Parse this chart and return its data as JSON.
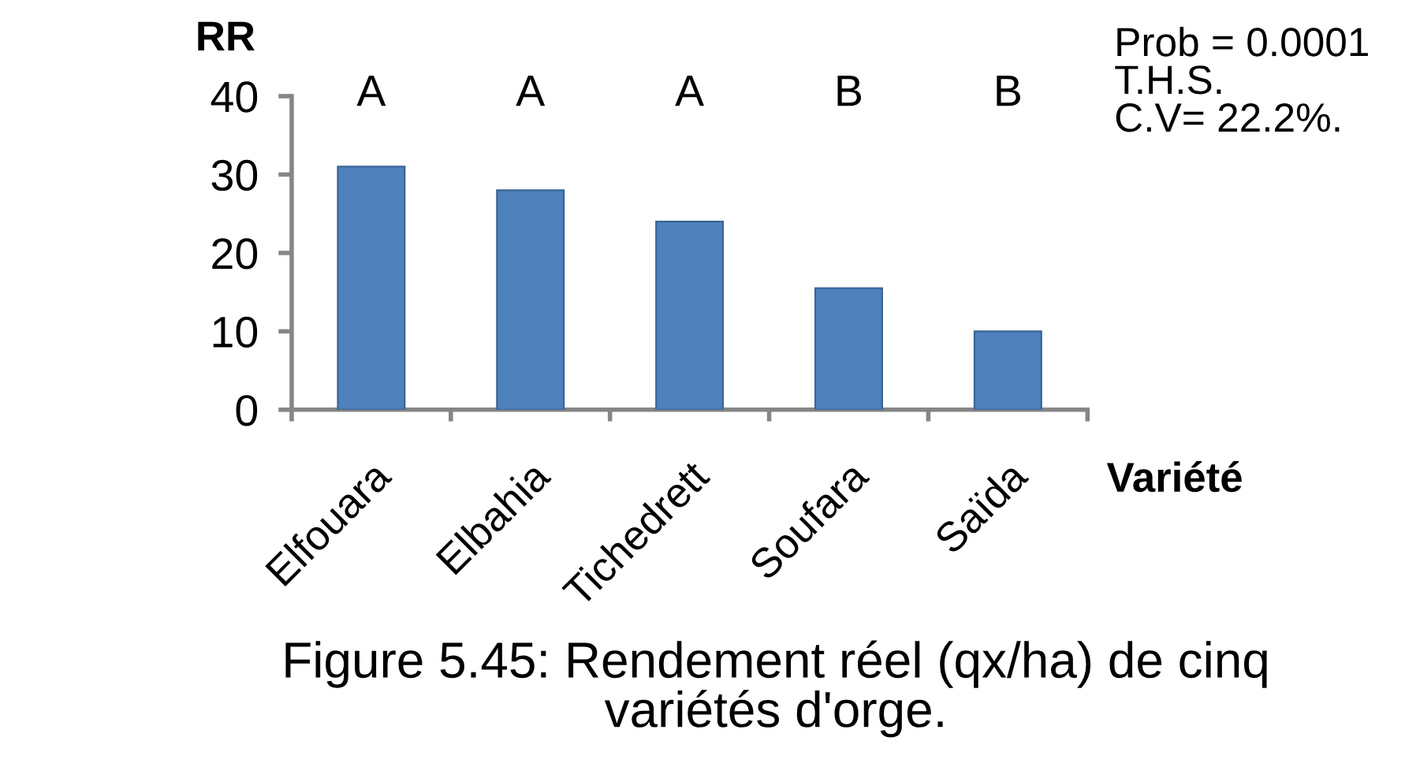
{
  "chart_data": {
    "type": "bar",
    "title": "Figure 5.45: Rendement réel (qx/ha) de cinq variétés d'orge.",
    "xlabel": "Variété",
    "ylabel": "RR",
    "categories": [
      "Elfouara",
      "Elbahia",
      "Tichedrett",
      "Soufara",
      "Saïda"
    ],
    "values": [
      31,
      28,
      24,
      15.5,
      10
    ],
    "color": "#4f81bd",
    "ylim": [
      0,
      40
    ],
    "yticks": [
      0,
      10,
      20,
      30,
      40
    ],
    "annotations": [
      "A",
      "A",
      "A",
      "B",
      "B",
      "Prob = 0.0001\nT.H.S.\nC.V= 22.2%."
    ],
    "grid": false,
    "legend": false
  }
}
